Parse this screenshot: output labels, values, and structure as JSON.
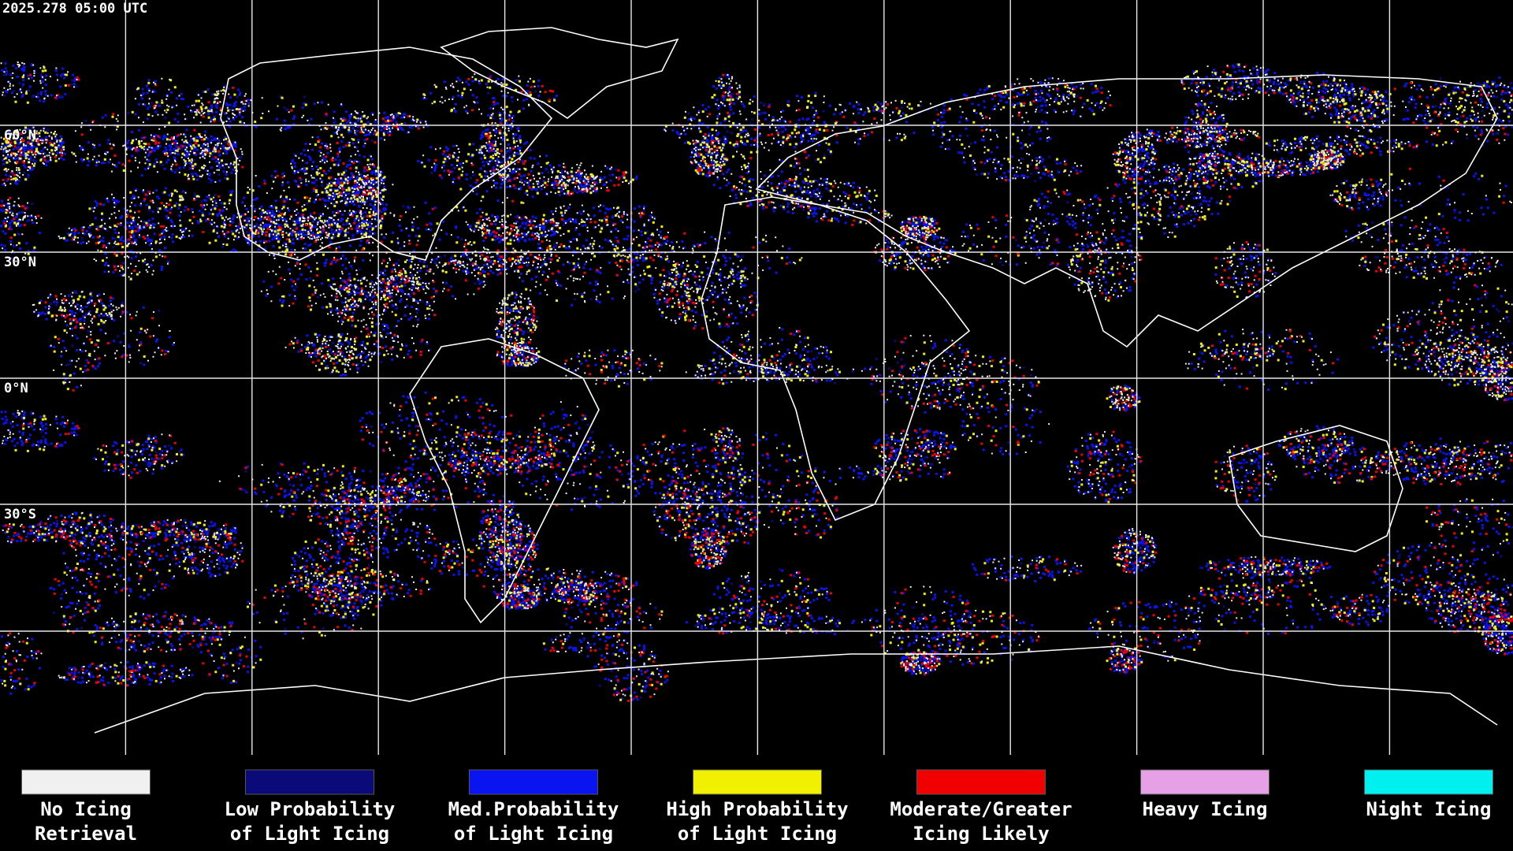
{
  "timestamp": "2025.278 05:00 UTC",
  "latitude_labels": [
    "60°N",
    "30°N",
    "0°N",
    "30°S"
  ],
  "legend": [
    {
      "lines": [
        "No Icing",
        "Retrieval"
      ],
      "color": "#f0f0f0"
    },
    {
      "lines": [
        "Low Probability",
        "of Light Icing"
      ],
      "color": "#0a0a78"
    },
    {
      "lines": [
        "Med.Probability",
        "of Light Icing"
      ],
      "color": "#0a14f0"
    },
    {
      "lines": [
        "High Probability",
        "of Light Icing"
      ],
      "color": "#f0f000"
    },
    {
      "lines": [
        "Moderate/Greater",
        "Icing Likely"
      ],
      "color": "#f00000"
    },
    {
      "lines": [
        "Heavy Icing"
      ],
      "color": "#e6a0e6"
    },
    {
      "lines": [
        "Night Icing"
      ],
      "color": "#00f0f0"
    }
  ]
}
